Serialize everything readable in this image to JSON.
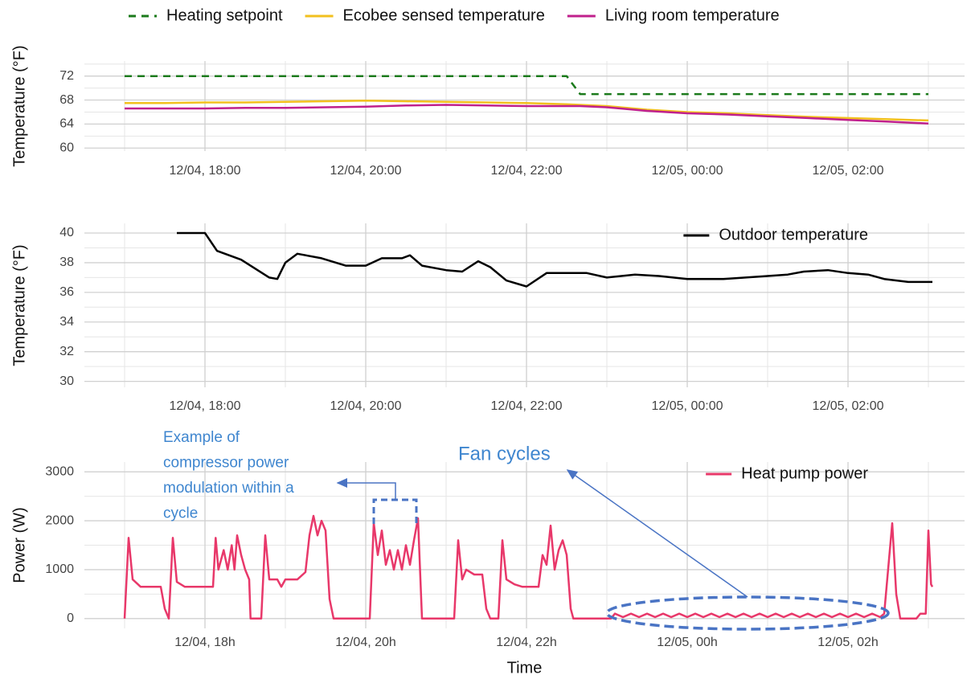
{
  "chart_data": [
    {
      "type": "line",
      "y_label": "Temperature (°F)",
      "legend": "top",
      "xlim": [
        "12/04 16:30",
        "12/05 03:27"
      ],
      "xticks": [
        {
          "value": "12/04 18:00",
          "label": "12/04, 18:00"
        },
        {
          "value": "12/04 20:00",
          "label": "12/04, 20:00"
        },
        {
          "value": "12/04 22:00",
          "label": "12/04, 22:00"
        },
        {
          "value": "12/05 00:00",
          "label": "12/05, 00:00"
        },
        {
          "value": "12/05 02:00",
          "label": "12/05, 02:00"
        }
      ],
      "ylim": [
        59.5,
        74.5
      ],
      "yticks": [
        60,
        64,
        68,
        72
      ],
      "grid": true,
      "x": [
        "12/04 17:00",
        "12/04 17:30",
        "12/04 18:00",
        "12/04 18:30",
        "12/04 19:00",
        "12/04 19:30",
        "12/04 20:00",
        "12/04 20:30",
        "12/04 21:00",
        "12/04 21:30",
        "12/04 22:00",
        "12/04 22:30",
        "12/04 22:40",
        "12/04 23:00",
        "12/04 23:30",
        "12/05 00:00",
        "12/05 00:30",
        "12/05 01:00",
        "12/05 01:30",
        "12/05 02:00",
        "12/05 02:30",
        "12/05 03:00"
      ],
      "series": [
        {
          "name": "Heating setpoint",
          "color": "#1b7a1b",
          "line_style": "dashed",
          "values": [
            72,
            72,
            72,
            72,
            72,
            72,
            72,
            72,
            72,
            72,
            72,
            72,
            69,
            69,
            69,
            69,
            69,
            69,
            69,
            69,
            69,
            69
          ]
        },
        {
          "name": "Ecobee sensed temperature",
          "color": "#f2c01e",
          "line_style": "solid",
          "values": [
            67.5,
            67.5,
            67.6,
            67.6,
            67.7,
            67.8,
            67.9,
            67.8,
            67.7,
            67.6,
            67.5,
            67.3,
            67.2,
            67.0,
            66.4,
            66.0,
            65.8,
            65.5,
            65.2,
            65.0,
            64.8,
            64.6
          ]
        },
        {
          "name": "Living room temperature",
          "color": "#c0208c",
          "line_style": "solid",
          "values": [
            66.6,
            66.6,
            66.6,
            66.7,
            66.7,
            66.8,
            66.9,
            67.1,
            67.2,
            67.1,
            67.0,
            67.0,
            67.0,
            66.8,
            66.2,
            65.8,
            65.6,
            65.3,
            65.0,
            64.7,
            64.4,
            64.1
          ]
        }
      ]
    },
    {
      "type": "line",
      "y_label": "Temperature (°F)",
      "legend": "top right",
      "xlim": [
        "12/04 16:30",
        "12/05 03:27"
      ],
      "xticks": [
        {
          "value": "12/04 18:00",
          "label": "12/04, 18:00"
        },
        {
          "value": "12/04 20:00",
          "label": "12/04, 20:00"
        },
        {
          "value": "12/04 22:00",
          "label": "12/04, 22:00"
        },
        {
          "value": "12/05 00:00",
          "label": "12/05, 00:00"
        },
        {
          "value": "12/05 02:00",
          "label": "12/05, 02:00"
        }
      ],
      "ylim": [
        29.6,
        40.65
      ],
      "yticks": [
        30,
        32,
        34,
        36,
        38,
        40
      ],
      "grid": true,
      "x": [
        "12/04 17:39",
        "12/04 18:00",
        "12/04 18:09",
        "12/04 18:27",
        "12/04 18:48",
        "12/04 18:54",
        "12/04 19:00",
        "12/04 19:09",
        "12/04 19:27",
        "12/04 19:45",
        "12/04 20:00",
        "12/04 20:12",
        "12/04 20:27",
        "12/04 20:33",
        "12/04 20:42",
        "12/04 21:00",
        "12/04 21:12",
        "12/04 21:24",
        "12/04 21:33",
        "12/04 21:45",
        "12/04 22:00",
        "12/04 22:15",
        "12/04 22:27",
        "12/04 22:45",
        "12/04 23:00",
        "12/04 23:21",
        "12/04 23:39",
        "12/05 00:00",
        "12/05 00:27",
        "12/05 01:00",
        "12/05 01:15",
        "12/05 01:27",
        "12/05 01:45",
        "12/05 02:00",
        "12/05 02:15",
        "12/05 02:27",
        "12/05 02:45",
        "12/05 03:03"
      ],
      "series": [
        {
          "name": "Outdoor temperature",
          "color": "#000000",
          "line_style": "solid",
          "values": [
            40,
            40,
            38.8,
            38.2,
            37,
            36.9,
            38,
            38.6,
            38.3,
            37.8,
            37.8,
            38.3,
            38.3,
            38.5,
            37.8,
            37.5,
            37.4,
            38.1,
            37.7,
            36.8,
            36.4,
            37.3,
            37.3,
            37.3,
            37,
            37.2,
            37.1,
            36.9,
            36.9,
            37.1,
            37.2,
            37.4,
            37.5,
            37.3,
            37.2,
            36.9,
            36.7,
            36.7
          ]
        }
      ]
    },
    {
      "type": "line",
      "y_label": "Power (W)",
      "x_label": "Time",
      "legend": "top right",
      "xlim": [
        "12/04 16:30",
        "12/05 03:27"
      ],
      "xticks": [
        {
          "value": "12/04 18:00",
          "label": "12/04, 18h"
        },
        {
          "value": "12/04 20:00",
          "label": "12/04, 20h"
        },
        {
          "value": "12/04 22:00",
          "label": "12/04, 22h"
        },
        {
          "value": "12/05 00:00",
          "label": "12/05, 00h"
        },
        {
          "value": "12/05 02:00",
          "label": "12/05, 02h"
        }
      ],
      "ylim": [
        -200,
        3200
      ],
      "yticks": [
        0,
        1000,
        2000,
        3000
      ],
      "grid": true,
      "annotations": [
        {
          "text": [
            "Example of",
            "compressor power",
            "modulation within a",
            "cycle"
          ]
        },
        {
          "text": "Fan cycles"
        }
      ],
      "x": [
        "12/04 17:00",
        "12/04 17:03",
        "12/04 17:06",
        "12/04 17:12",
        "12/04 17:27",
        "12/04 17:30",
        "12/04 17:33",
        "12/04 17:36",
        "12/04 17:39",
        "12/04 17:45",
        "12/04 18:06",
        "12/04 18:08",
        "12/04 18:10",
        "12/04 18:14",
        "12/04 18:17",
        "12/04 18:20",
        "12/04 18:22",
        "12/04 18:24",
        "12/04 18:27",
        "12/04 18:30",
        "12/04 18:33",
        "12/04 18:34",
        "12/04 18:42",
        "12/04 18:45",
        "12/04 18:48",
        "12/04 18:54",
        "12/04 18:57",
        "12/04 19:00",
        "12/04 19:09",
        "12/04 19:15",
        "12/04 19:18",
        "12/04 19:21",
        "12/04 19:24",
        "12/04 19:27",
        "12/04 19:30",
        "12/04 19:33",
        "12/04 19:36",
        "12/04 20:03",
        "12/04 20:06",
        "12/04 20:09",
        "12/04 20:12",
        "12/04 20:15",
        "12/04 20:18",
        "12/04 20:21",
        "12/04 20:24",
        "12/04 20:27",
        "12/04 20:30",
        "12/04 20:33",
        "12/04 20:36",
        "12/04 20:39",
        "12/04 20:42",
        "12/04 21:06",
        "12/04 21:09",
        "12/04 21:12",
        "12/04 21:15",
        "12/04 21:21",
        "12/04 21:27",
        "12/04 21:30",
        "12/04 21:33",
        "12/04 21:39",
        "12/04 21:42",
        "12/04 21:45",
        "12/04 21:51",
        "12/04 21:57",
        "12/04 22:09",
        "12/04 22:12",
        "12/04 22:15",
        "12/04 22:18",
        "12/04 22:21",
        "12/04 22:24",
        "12/04 22:27",
        "12/04 22:30",
        "12/04 22:33",
        "12/04 22:35",
        "12/04 23:03",
        "12/04 23:06",
        "12/04 23:12",
        "12/04 23:18",
        "12/04 23:24",
        "12/04 23:30",
        "12/04 23:36",
        "12/04 23:42",
        "12/04 23:48",
        "12/04 23:54",
        "12/05 00:00",
        "12/05 00:06",
        "12/05 00:12",
        "12/05 00:18",
        "12/05 00:24",
        "12/05 00:30",
        "12/05 00:36",
        "12/05 00:42",
        "12/05 00:48",
        "12/05 00:54",
        "12/05 01:00",
        "12/05 01:06",
        "12/05 01:12",
        "12/05 01:18",
        "12/05 01:24",
        "12/05 01:30",
        "12/05 01:36",
        "12/05 01:42",
        "12/05 01:48",
        "12/05 01:54",
        "12/05 02:00",
        "12/05 02:06",
        "12/05 02:12",
        "12/05 02:18",
        "12/05 02:24",
        "12/05 02:27",
        "12/05 02:33",
        "12/05 02:36",
        "12/05 02:39",
        "12/05 02:51",
        "12/05 02:54",
        "12/05 02:58",
        "12/05 03:00",
        "12/05 03:02",
        "12/05 03:03"
      ],
      "series": [
        {
          "name": "Heat pump power",
          "color": "#e8386a",
          "line_style": "solid",
          "values": [
            0,
            1650,
            800,
            650,
            650,
            200,
            0,
            1650,
            750,
            650,
            650,
            1650,
            1000,
            1400,
            1000,
            1500,
            1000,
            1700,
            1300,
            1000,
            800,
            0,
            0,
            1700,
            800,
            800,
            650,
            800,
            800,
            950,
            1700,
            2100,
            1700,
            2000,
            1800,
            400,
            0,
            0,
            1950,
            1300,
            1800,
            1100,
            1400,
            1000,
            1400,
            1000,
            1500,
            1100,
            1600,
            2050,
            0,
            0,
            1600,
            800,
            1000,
            900,
            900,
            200,
            0,
            0,
            1600,
            800,
            700,
            650,
            650,
            1300,
            1100,
            1900,
            1000,
            1400,
            1600,
            1300,
            200,
            0,
            0,
            100,
            30,
            100,
            30,
            100,
            30,
            100,
            30,
            100,
            30,
            100,
            30,
            100,
            30,
            100,
            30,
            100,
            30,
            100,
            30,
            100,
            30,
            100,
            30,
            100,
            30,
            100,
            30,
            100,
            30,
            100,
            30,
            100,
            30,
            100,
            1950,
            500,
            0,
            0,
            100,
            100,
            1800,
            700,
            650
          ]
        }
      ]
    }
  ]
}
